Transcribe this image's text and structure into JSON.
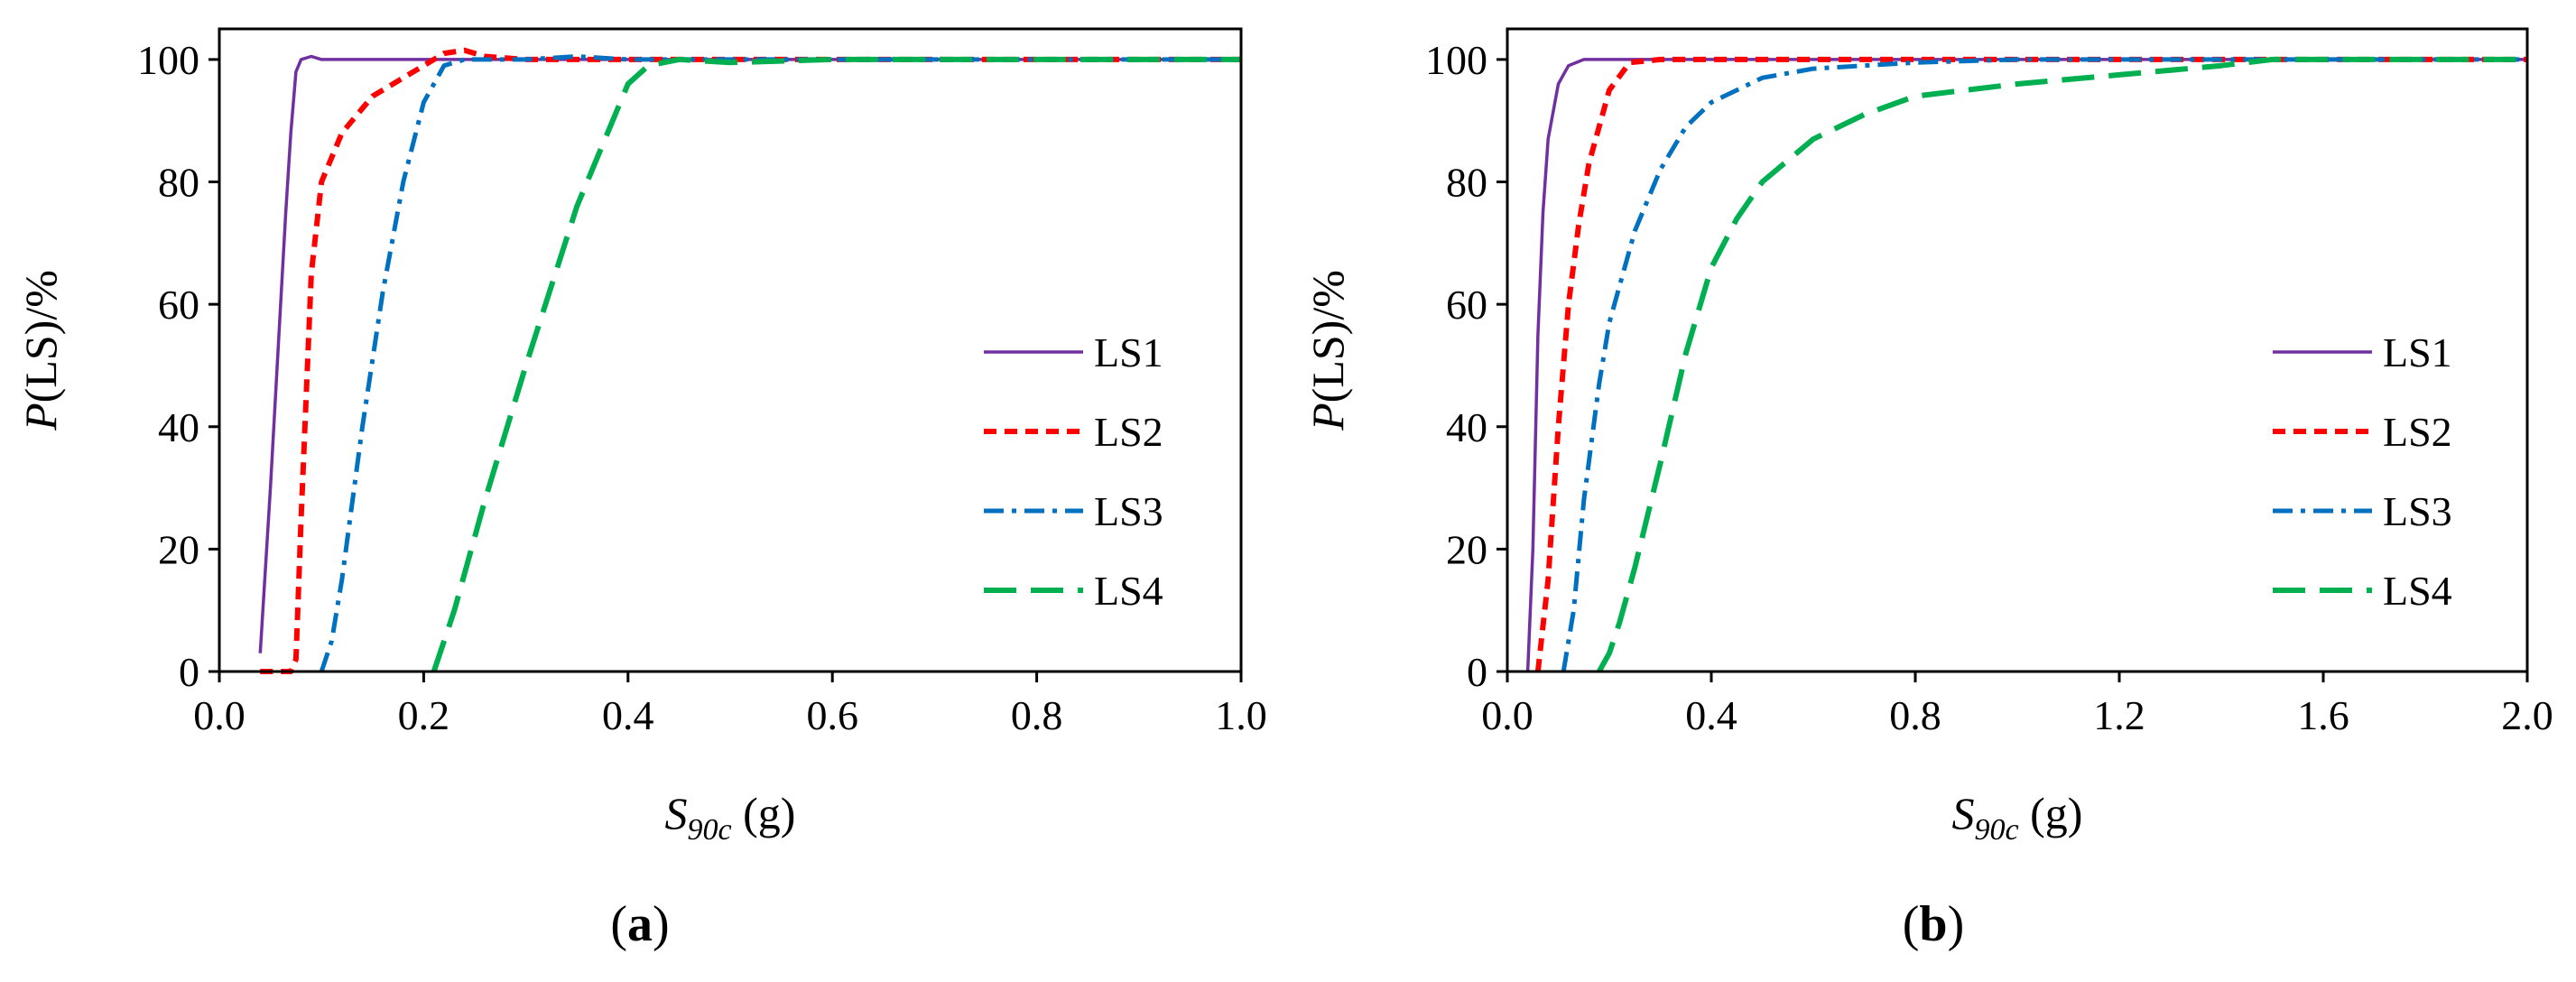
{
  "figure": {
    "panel_labels": [
      {
        "open": "(",
        "letter": "a",
        "close": ")"
      },
      {
        "open": "(",
        "letter": "b",
        "close": ")"
      }
    ]
  },
  "colors": {
    "LS1": "#7030A0",
    "LS2": "#FF0000",
    "LS3": "#0070C0",
    "LS4": "#00B050",
    "axis": "#000000",
    "background": "#FFFFFF"
  },
  "chart_data": [
    {
      "type": "line",
      "panel": "a",
      "xlabel": {
        "main": "S",
        "sub": "90c",
        "unit": " (g)"
      },
      "ylabel": {
        "main": "P",
        "rest": "(LS)/%"
      },
      "xlim": [
        0.0,
        1.0
      ],
      "ylim": [
        0,
        105
      ],
      "xticks": [
        0.0,
        0.2,
        0.4,
        0.6,
        0.8,
        1.0
      ],
      "xtick_labels": [
        "0.0",
        "0.2",
        "0.4",
        "0.6",
        "0.8",
        "1.0"
      ],
      "yticks": [
        0,
        20,
        40,
        60,
        80,
        100
      ],
      "ytick_labels": [
        "0",
        "20",
        "40",
        "60",
        "80",
        "100"
      ],
      "grid": false,
      "legend_position": "right",
      "series": [
        {
          "name": "LS1",
          "style": "solid",
          "x": [
            0.04,
            0.05,
            0.06,
            0.065,
            0.07,
            0.075,
            0.08,
            0.09,
            0.1,
            0.15,
            0.3,
            0.5,
            1.0
          ],
          "y": [
            3,
            30,
            60,
            75,
            88,
            98,
            100,
            100.5,
            100,
            100,
            100,
            100,
            100
          ]
        },
        {
          "name": "LS2",
          "style": "dashed",
          "x": [
            0.04,
            0.07,
            0.075,
            0.08,
            0.09,
            0.1,
            0.12,
            0.15,
            0.18,
            0.2,
            0.22,
            0.24,
            0.26,
            0.3,
            0.5,
            1.0
          ],
          "y": [
            0,
            0,
            2,
            25,
            65,
            80,
            88,
            94,
            97,
            99,
            101,
            101.5,
            100.5,
            100,
            100,
            100
          ]
        },
        {
          "name": "LS3",
          "style": "dash-dot",
          "x": [
            0.1,
            0.11,
            0.12,
            0.14,
            0.16,
            0.18,
            0.2,
            0.22,
            0.24,
            0.3,
            0.35,
            0.4,
            1.0
          ],
          "y": [
            0,
            5,
            15,
            40,
            62,
            80,
            93,
            99,
            100,
            100,
            100.5,
            100,
            100
          ]
        },
        {
          "name": "LS4",
          "style": "long-dash",
          "x": [
            0.21,
            0.23,
            0.26,
            0.3,
            0.35,
            0.4,
            0.42,
            0.45,
            0.5,
            0.6,
            1.0
          ],
          "y": [
            0,
            10,
            28,
            50,
            76,
            96,
            99,
            100,
            99.5,
            100,
            100
          ]
        }
      ]
    },
    {
      "type": "line",
      "panel": "b",
      "xlabel": {
        "main": "S",
        "sub": "90c",
        "unit": " (g)"
      },
      "ylabel": {
        "main": "P",
        "rest": "(LS)/%"
      },
      "xlim": [
        0.0,
        2.0
      ],
      "ylim": [
        0,
        105
      ],
      "xticks": [
        0.0,
        0.4,
        0.8,
        1.2,
        1.6,
        2.0
      ],
      "xtick_labels": [
        "0.0",
        "0.4",
        "0.8",
        "1.2",
        "1.6",
        "2.0"
      ],
      "yticks": [
        0,
        20,
        40,
        60,
        80,
        100
      ],
      "ytick_labels": [
        "0",
        "20",
        "40",
        "60",
        "80",
        "100"
      ],
      "grid": false,
      "legend_position": "right",
      "series": [
        {
          "name": "LS1",
          "style": "solid",
          "x": [
            0.04,
            0.05,
            0.06,
            0.07,
            0.08,
            0.1,
            0.12,
            0.15,
            0.2,
            0.4,
            1.0,
            2.0
          ],
          "y": [
            0,
            20,
            55,
            75,
            87,
            96,
            99,
            100,
            100,
            100,
            100,
            100
          ]
        },
        {
          "name": "LS2",
          "style": "dashed",
          "x": [
            0.06,
            0.08,
            0.1,
            0.12,
            0.14,
            0.16,
            0.2,
            0.24,
            0.3,
            0.5,
            1.0,
            2.0
          ],
          "y": [
            0,
            15,
            40,
            60,
            73,
            83,
            95,
            99.5,
            100,
            100,
            100,
            100
          ]
        },
        {
          "name": "LS3",
          "style": "dash-dot",
          "x": [
            0.11,
            0.13,
            0.15,
            0.18,
            0.2,
            0.25,
            0.3,
            0.35,
            0.4,
            0.5,
            0.6,
            0.8,
            1.0,
            1.5,
            2.0
          ],
          "y": [
            0,
            10,
            28,
            47,
            57,
            72,
            82,
            89,
            93,
            97,
            98.5,
            99.5,
            100,
            100,
            100
          ]
        },
        {
          "name": "LS4",
          "style": "long-dash",
          "x": [
            0.18,
            0.2,
            0.22,
            0.25,
            0.3,
            0.35,
            0.4,
            0.45,
            0.5,
            0.6,
            0.7,
            0.8,
            1.0,
            1.2,
            1.4,
            1.5,
            2.0
          ],
          "y": [
            0,
            3,
            8,
            17,
            34,
            52,
            66,
            74,
            80,
            87,
            91,
            94,
            96,
            97.5,
            99,
            100,
            100
          ]
        }
      ]
    }
  ]
}
